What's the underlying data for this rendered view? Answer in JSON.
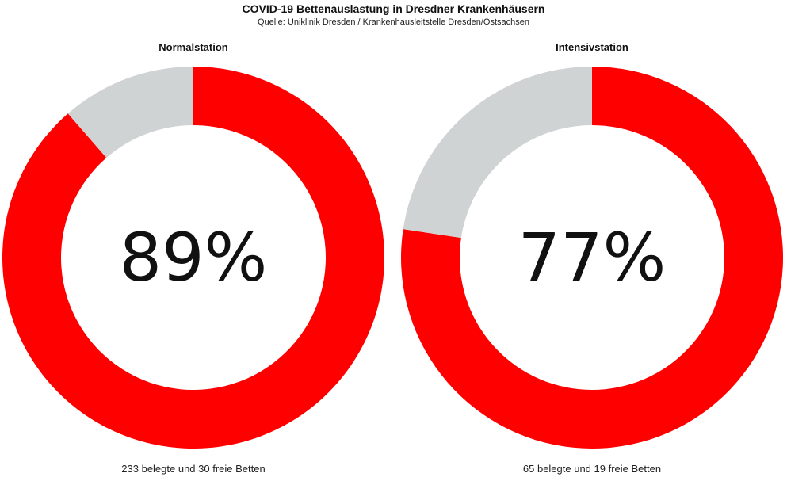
{
  "title": "COVID-19 Bettenauslastung in Dresdner Krankenhäusern",
  "subtitle": "Quelle: Uniklinik Dresden / Krankenhausleitstelle Dresden/Ostsachsen",
  "colors": {
    "occupied": "#ff0000",
    "free": "#cfd3d3"
  },
  "chart_data": [
    {
      "type": "pie",
      "title": "Normalstation",
      "categories": [
        "belegte",
        "freie"
      ],
      "values": [
        233,
        30
      ],
      "center_label": "89%",
      "caption": "233 belegte und 30 freie Betten"
    },
    {
      "type": "pie",
      "title": "Intensivstation",
      "categories": [
        "belegte",
        "freie"
      ],
      "values": [
        65,
        19
      ],
      "center_label": "77%",
      "caption": "65 belegte und 19 freie Betten"
    }
  ]
}
